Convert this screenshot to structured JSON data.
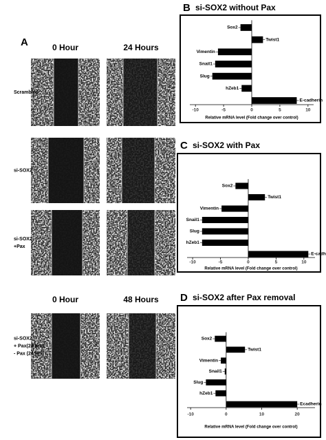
{
  "figure": {
    "panel_a": "A",
    "top_headers": [
      "0 Hour",
      "24 Hours"
    ],
    "bottom_headers": [
      "0 Hour",
      "48 Hours"
    ],
    "row_labels": [
      [
        "Scrambled"
      ],
      [
        "si-SOX2"
      ],
      [
        "si-SOX2",
        "+Pax"
      ],
      [
        "si-SOX2",
        "+ Pax(24 hrs)",
        "- Pax (24 hrs)"
      ]
    ]
  },
  "chart_data": [
    {
      "type": "bar",
      "orientation": "horizontal",
      "letter": "B",
      "title": "si-SOX2 without Pax",
      "categories": [
        "Sox2",
        "Twist1",
        "Vimentin",
        "Snail1",
        "Slug",
        "hZeb1",
        "E-cadherin"
      ],
      "values": [
        -2,
        2,
        -6,
        -6.5,
        -7,
        -1.8,
        8
      ],
      "color": "#000000",
      "xlim": [
        -11,
        11
      ],
      "xticks": [
        -10,
        -5,
        0,
        5,
        10
      ],
      "xlabel": "Relative mRNA level (Fold change over control)"
    },
    {
      "type": "bar",
      "orientation": "horizontal",
      "letter": "C",
      "title": "si-SOX2 with Pax",
      "categories": [
        "Sox2",
        "Twist1",
        "Vimentin",
        "Snail1",
        "Slug",
        "hZeb1",
        "E-cadherin"
      ],
      "values": [
        -2.3,
        3,
        -4.8,
        -8.3,
        -8.3,
        -8.3,
        10.8
      ],
      "color": "#000000",
      "xlim": [
        -11,
        12
      ],
      "xticks": [
        -10,
        -5,
        0,
        5,
        10
      ],
      "xlabel": "Relative mRNA level (Fold change over control)"
    },
    {
      "type": "bar",
      "orientation": "horizontal",
      "letter": "D",
      "title": "si-SOX2 after Pax removal",
      "categories": [
        "Sox2",
        "Twist1",
        "Vimentin",
        "Snail1",
        "Slug",
        "hZeb1",
        "Ecadherin"
      ],
      "values": [
        -3.2,
        5.3,
        -1.5,
        -0.4,
        -5.7,
        -3,
        20
      ],
      "color": "#000000",
      "xlim": [
        -11,
        25
      ],
      "xticks": [
        -10,
        0,
        10,
        20
      ],
      "xlabel": "Relative mRNA level (Fold change over control)"
    }
  ]
}
